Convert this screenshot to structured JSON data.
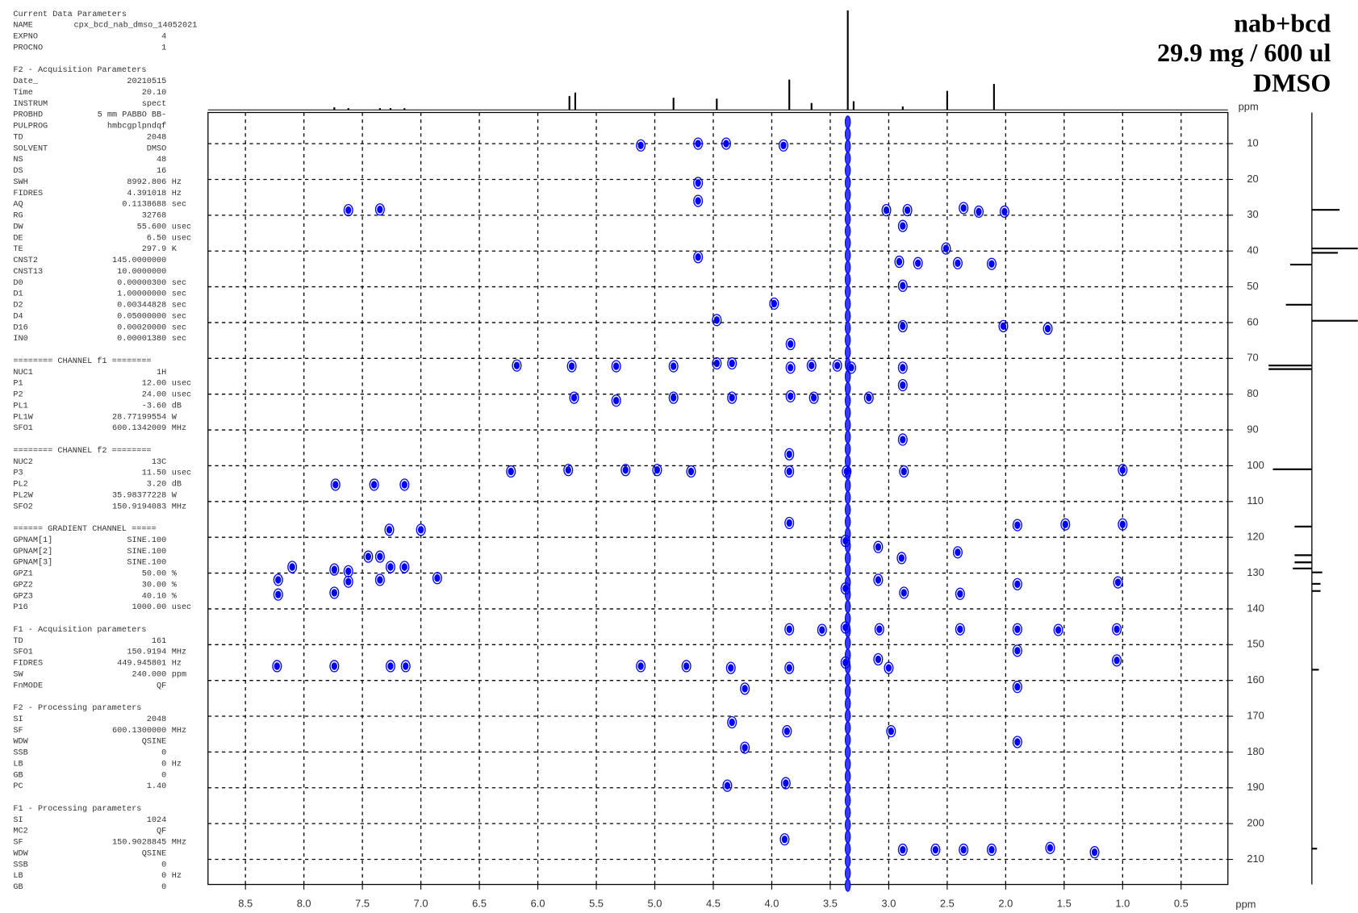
{
  "chart_data": {
    "type": "scatter",
    "title": "nab+bcd",
    "subtitle": "29.9 mg / 600 ul",
    "solvent": "DMSO",
    "x_label": "ppm",
    "y_label": "ppm",
    "xlim": [
      8.82,
      0.1
    ],
    "ylim": [
      1.3,
      217
    ],
    "xticks": [
      8.5,
      {
        "value": 8,
        "label": "8.0"
      },
      7.5,
      {
        "value": 7,
        "label": "7.0"
      },
      6.5,
      {
        "value": 6,
        "label": "6.0"
      },
      5.5,
      {
        "value": 5,
        "label": "5.0"
      },
      4.5,
      {
        "value": 4,
        "label": "4.0"
      },
      3.5,
      {
        "value": 3,
        "label": "3.0"
      },
      2.5,
      {
        "value": 2,
        "label": "2.0"
      },
      1.5,
      {
        "value": 1,
        "label": "1.0"
      },
      0.5
    ],
    "yticks": [
      10,
      20,
      30,
      40,
      50,
      60,
      70,
      80,
      90,
      100,
      110,
      120,
      130,
      140,
      150,
      160,
      170,
      180,
      190,
      200,
      210
    ],
    "grid": true,
    "ridge_x": 3.35,
    "series": [
      {
        "color": "#0000ff",
        "x": [
          5.12,
          4.63,
          4.39,
          3.9,
          4.63,
          4.63,
          7.62,
          7.35,
          3.02,
          2.84,
          2.36,
          2.23,
          2.01,
          2.88,
          2.51,
          4.63,
          2.91,
          2.75,
          2.41,
          2.12,
          2.88,
          3.98,
          4.47,
          2.88,
          2.02,
          1.64,
          6.18,
          5.71,
          5.33,
          4.84,
          4.47,
          4.34,
          3.84,
          3.84,
          3.66,
          3.44,
          3.32,
          2.88,
          5.69,
          5.33,
          4.84,
          4.34,
          3.84,
          3.64,
          3.17,
          2.88,
          2.88,
          6.23,
          5.74,
          5.25,
          4.98,
          4.69,
          3.85,
          3.85,
          3.36,
          2.87,
          1.0,
          7.73,
          7.4,
          7.14,
          7.27,
          7.0,
          3.85,
          1.9,
          1.49,
          1.0,
          3.37,
          3.09,
          2.89,
          2.41,
          8.1,
          7.74,
          7.62,
          7.45,
          7.35,
          7.26,
          7.14,
          6.86,
          8.22,
          7.74,
          7.62,
          7.35,
          8.22,
          3.37,
          3.09,
          2.87,
          2.39,
          1.9,
          1.04,
          3.85,
          3.57,
          3.37,
          3.08,
          2.39,
          1.9,
          1.55,
          1.05,
          1.9,
          3.09,
          3.0,
          8.23,
          7.74,
          7.26,
          7.13,
          5.12,
          4.73,
          4.35,
          3.85,
          3.37,
          1.05,
          4.23,
          1.9,
          4.34,
          3.87,
          2.98,
          4.23,
          1.9,
          4.38,
          3.88,
          3.89,
          2.88,
          2.6,
          2.36,
          2.12,
          1.62,
          1.24
        ],
        "values": [
          10.5,
          10,
          10,
          10.5,
          21,
          26,
          28.6,
          28.4,
          28.6,
          28.6,
          28,
          29,
          29,
          33,
          39.3,
          41.7,
          43,
          43.4,
          43.4,
          43.6,
          49.7,
          54.7,
          59.3,
          61,
          61,
          61.7,
          72,
          72.2,
          72.2,
          72.2,
          71.4,
          71.4,
          66,
          72.6,
          72,
          72,
          72.6,
          72.6,
          81,
          81.8,
          81,
          81,
          80.6,
          81,
          81,
          77.5,
          92.7,
          101.6,
          101.2,
          101.2,
          101.2,
          101.6,
          96.8,
          101.6,
          101.6,
          101.6,
          101.2,
          105.3,
          105.3,
          105.3,
          117.9,
          117.9,
          116,
          116.6,
          116.4,
          116.4,
          121,
          122.7,
          125.8,
          124.2,
          128.3,
          129,
          129.5,
          125.4,
          125.4,
          128.3,
          128.3,
          131.4,
          131.9,
          135.5,
          132.4,
          131.9,
          136,
          134.3,
          131.9,
          135.5,
          135.8,
          133.1,
          132.6,
          145.7,
          145.9,
          145.2,
          145.7,
          145.7,
          145.7,
          145.9,
          145.7,
          151.7,
          154.1,
          156.5,
          156,
          156,
          156,
          156,
          156,
          156,
          156.5,
          156.5,
          155,
          154.4,
          162.3,
          161.8,
          171.7,
          174.2,
          174.2,
          178.8,
          177.2,
          189.4,
          188.7,
          204.4,
          207.3,
          207.3,
          207.3,
          207.3,
          206.8,
          208
        ]
      }
    ],
    "projection_f2": {
      "x": [
        7.74,
        7.62,
        7.35,
        7.26,
        7.14,
        5.73,
        5.68,
        4.84,
        4.47,
        3.85,
        3.66,
        3.35,
        3.3,
        2.88,
        2.5,
        2.1
      ],
      "values": [
        3,
        2,
        2,
        2,
        2,
        16,
        20,
        14,
        13,
        35,
        8,
        115,
        10,
        4,
        22,
        30
      ]
    },
    "projection_f1": {
      "y": [
        28.5,
        39.3,
        40.5,
        43.8,
        55,
        59.5,
        72,
        73,
        101,
        117,
        125,
        127,
        128.7,
        129.8,
        133,
        135,
        157,
        207
      ],
      "values": [
        32,
        53,
        30,
        -25,
        -30,
        53,
        -50,
        -50,
        -45,
        -20,
        -20,
        -20,
        -22,
        12,
        10,
        10,
        8,
        6
      ]
    }
  },
  "parameters": [
    {
      "heading": "Current Data Parameters",
      "rows": [
        [
          "NAME",
          "cpx_bcd_nab_dmso_14052021"
        ],
        [
          "EXPNO",
          "4"
        ],
        [
          "PROCNO",
          "1"
        ]
      ]
    },
    {
      "heading": "F2 - Acquisition Parameters",
      "rows": [
        [
          "Date_",
          "20210515"
        ],
        [
          "Time",
          "20.10"
        ],
        [
          "INSTRUM",
          "spect"
        ],
        [
          "PROBHD",
          "5 mm PABBO BB-"
        ],
        [
          "PULPROG",
          "hmbcgplpndqf"
        ],
        [
          "TD",
          "2048"
        ],
        [
          "SOLVENT",
          "DMSO"
        ],
        [
          "NS",
          "48"
        ],
        [
          "DS",
          "16"
        ],
        [
          "SWH",
          "8992.806",
          "Hz"
        ],
        [
          "FIDRES",
          "4.391018",
          "Hz"
        ],
        [
          "AQ",
          "0.1138688",
          "sec"
        ],
        [
          "RG",
          "32768"
        ],
        [
          "DW",
          "55.600",
          "usec"
        ],
        [
          "DE",
          "6.50",
          "usec"
        ],
        [
          "TE",
          "297.9",
          "K"
        ],
        [
          "CNST2",
          "145.0000000"
        ],
        [
          "CNST13",
          "10.0000000"
        ],
        [
          "D0",
          "0.00000300",
          "sec"
        ],
        [
          "D1",
          "1.00000000",
          "sec"
        ],
        [
          "D2",
          "0.00344828",
          "sec"
        ],
        [
          "D4",
          "0.05000000",
          "sec"
        ],
        [
          "D16",
          "0.00020000",
          "sec"
        ],
        [
          "IN0",
          "0.00001380",
          "sec"
        ]
      ]
    },
    {
      "heading": "======== CHANNEL f1 ========",
      "rows": [
        [
          "NUC1",
          "1H"
        ],
        [
          "P1",
          "12.00",
          "usec"
        ],
        [
          "P2",
          "24.00",
          "usec"
        ],
        [
          "PL1",
          "-3.60",
          "dB"
        ],
        [
          "PL1W",
          "28.77199554",
          "W"
        ],
        [
          "SFO1",
          "600.1342009",
          "MHz"
        ]
      ]
    },
    {
      "heading": "======== CHANNEL f2 ========",
      "rows": [
        [
          "NUC2",
          "13C"
        ],
        [
          "P3",
          "11.50",
          "usec"
        ],
        [
          "PL2",
          "3.20",
          "dB"
        ],
        [
          "PL2W",
          "35.98377228",
          "W"
        ],
        [
          "SFO2",
          "150.9194083",
          "MHz"
        ]
      ]
    },
    {
      "heading": "====== GRADIENT CHANNEL =====",
      "rows": [
        [
          "GPNAM[1]",
          "SINE.100"
        ],
        [
          "GPNAM[2]",
          "SINE.100"
        ],
        [
          "GPNAM[3]",
          "SINE.100"
        ],
        [
          "GPZ1",
          "50.00",
          "%"
        ],
        [
          "GPZ2",
          "30.00",
          "%"
        ],
        [
          "GPZ3",
          "40.10",
          "%"
        ],
        [
          "P16",
          "1000.00",
          "usec"
        ]
      ]
    },
    {
      "heading": "F1 - Acquisition parameters",
      "rows": [
        [
          "TD",
          "161"
        ],
        [
          "SFO1",
          "150.9194",
          "MHz"
        ],
        [
          "FIDRES",
          "449.945801",
          "Hz"
        ],
        [
          "SW",
          "240.000",
          "ppm"
        ],
        [
          "FnMODE",
          "QF"
        ]
      ]
    },
    {
      "heading": "F2 - Processing parameters",
      "rows": [
        [
          "SI",
          "2048"
        ],
        [
          "SF",
          "600.1300000",
          "MHz"
        ],
        [
          "WDW",
          "QSINE"
        ],
        [
          "SSB",
          "0"
        ],
        [
          "LB",
          "0",
          "Hz"
        ],
        [
          "GB",
          "0"
        ],
        [
          "PC",
          "1.40"
        ]
      ]
    },
    {
      "heading": "F1 - Processing parameters",
      "rows": [
        [
          "SI",
          "1024"
        ],
        [
          "MC2",
          "QF"
        ],
        [
          "SF",
          "150.9028845",
          "MHz"
        ],
        [
          "WDW",
          "QSINE"
        ],
        [
          "SSB",
          "0"
        ],
        [
          "LB",
          "0",
          "Hz"
        ],
        [
          "GB",
          "0"
        ]
      ]
    }
  ]
}
